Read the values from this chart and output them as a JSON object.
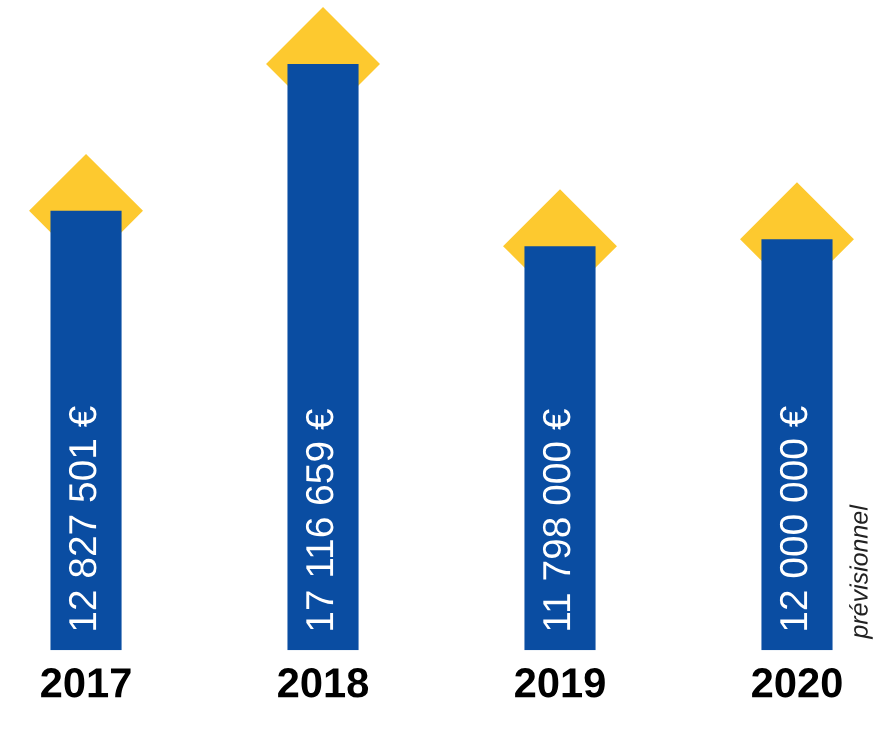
{
  "chart_data": {
    "type": "bar",
    "categories": [
      "2017",
      "2018",
      "2019",
      "2020"
    ],
    "values": [
      12827501,
      17116659,
      11798000,
      12000000
    ],
    "value_labels": [
      "12 827 501 €",
      "17 116 659 €",
      "11 798 000 €",
      "12 000 000 €"
    ],
    "color": "#0a4da2",
    "annotations": [
      "prévisionnel"
    ],
    "grid": false,
    "legend": false
  }
}
